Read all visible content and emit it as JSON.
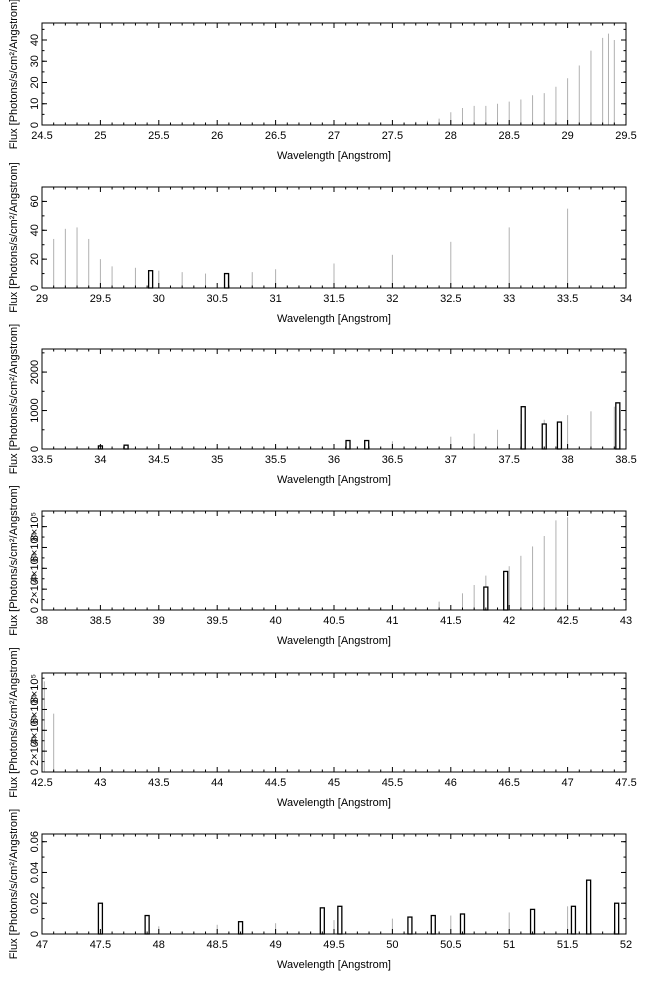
{
  "chart_data": [
    {
      "type": "bar",
      "title": "",
      "xlabel": "Wavelength [Angstrom]",
      "ylabel": "Flux [Photons/s/cm²/Angstrom]",
      "xlim": [
        24.5,
        29.5
      ],
      "ylim": [
        0,
        48
      ],
      "xticks": [
        24.5,
        25,
        25.5,
        26,
        26.5,
        27,
        27.5,
        28,
        28.5,
        29,
        29.5
      ],
      "xtick_labels": [
        "24.5",
        "25",
        "25.5",
        "26",
        "26.5",
        "27",
        "27.5",
        "28",
        "28.5",
        "29",
        "29.5"
      ],
      "yticks": [
        0,
        10,
        20,
        30,
        40
      ],
      "ytick_labels": [
        "0",
        "10",
        "20",
        "30",
        "40"
      ],
      "grid": false,
      "series": [
        {
          "style": "errorbars",
          "x": [
            27.6,
            27.7,
            27.8,
            27.9,
            28.0,
            28.1,
            28.2,
            28.3,
            28.4,
            28.5,
            28.6,
            28.7,
            28.8,
            28.9,
            29.0,
            29.1,
            29.2,
            29.3,
            29.35,
            29.4,
            29.5
          ],
          "values": [
            1,
            1.5,
            2,
            3,
            6,
            8,
            9,
            9,
            10,
            11,
            12,
            14,
            15,
            18,
            22,
            28,
            35,
            41,
            43,
            40,
            36
          ]
        }
      ]
    },
    {
      "type": "bar",
      "title": "",
      "xlabel": "Wavelength [Angstrom]",
      "ylabel": "Flux [Photons/s/cm²/Angstrom]",
      "xlim": [
        29,
        34
      ],
      "ylim": [
        0,
        70
      ],
      "xticks": [
        29,
        29.5,
        30,
        30.5,
        31,
        31.5,
        32,
        32.5,
        33,
        33.5,
        34
      ],
      "xtick_labels": [
        "29",
        "29.5",
        "30",
        "30.5",
        "31",
        "31.5",
        "32",
        "32.5",
        "33",
        "33.5",
        "34"
      ],
      "yticks": [
        0,
        20,
        40,
        60
      ],
      "ytick_labels": [
        "0",
        "20",
        "40",
        "60"
      ],
      "grid": false,
      "series": [
        {
          "style": "errorbars",
          "x": [
            29.0,
            29.1,
            29.2,
            29.3,
            29.4,
            29.5,
            29.6,
            29.8,
            30.0,
            30.2,
            30.4,
            30.6,
            30.8,
            31.0,
            31.5,
            32.0,
            32.5,
            33.0,
            33.5,
            34.0
          ],
          "values": [
            24,
            34,
            41,
            42,
            34,
            20,
            15,
            14,
            12,
            11,
            10,
            10,
            11,
            13,
            17,
            23,
            32,
            42,
            55,
            64
          ]
        },
        {
          "style": "lines",
          "x": [
            29.93,
            30.58
          ],
          "values": [
            12,
            10
          ]
        }
      ]
    },
    {
      "type": "bar",
      "title": "",
      "xlabel": "Wavelength [Angstrom]",
      "ylabel": "Flux [Photons/s/cm²/Angstrom]",
      "xlim": [
        33.5,
        38.5
      ],
      "ylim": [
        0,
        2600
      ],
      "xticks": [
        33.5,
        34,
        34.5,
        35,
        35.5,
        36,
        36.5,
        37,
        37.5,
        38,
        38.5
      ],
      "xtick_labels": [
        "33.5",
        "34",
        "34.5",
        "35",
        "35.5",
        "36",
        "36.5",
        "37",
        "37.5",
        "38",
        "38.5"
      ],
      "yticks": [
        0,
        1000,
        2000
      ],
      "ytick_labels": [
        "0",
        "1000",
        "2000"
      ],
      "grid": false,
      "series": [
        {
          "style": "errorbars",
          "x": [
            34.0,
            34.5,
            35.0,
            35.5,
            36.0,
            36.5,
            37.0,
            37.2,
            37.4,
            37.6,
            37.8,
            38.0,
            38.2,
            38.4,
            38.5
          ],
          "values": [
            20,
            30,
            50,
            70,
            120,
            200,
            320,
            400,
            500,
            650,
            760,
            880,
            980,
            1100,
            1200
          ]
        },
        {
          "style": "lines",
          "x": [
            34.0,
            34.22,
            36.12,
            36.28,
            37.62,
            37.8,
            37.93,
            38.43
          ],
          "values": [
            80,
            100,
            220,
            220,
            1100,
            650,
            700,
            1200
          ]
        }
      ]
    },
    {
      "type": "bar",
      "title": "",
      "xlabel": "Wavelength [Angstrom]",
      "ylabel": "Flux [Photons/s/cm²/Angstrom]",
      "xlim": [
        38,
        43
      ],
      "ylim": [
        0,
        950000
      ],
      "xticks": [
        38,
        38.5,
        39,
        39.5,
        40,
        40.5,
        41,
        41.5,
        42,
        42.5,
        43
      ],
      "xtick_labels": [
        "38",
        "38.5",
        "39",
        "39.5",
        "40",
        "40.5",
        "41",
        "41.5",
        "42",
        "42.5",
        "43"
      ],
      "yticks": [
        0,
        200000,
        400000,
        600000,
        800000
      ],
      "ytick_labels": [
        "0",
        "2×10⁵",
        "4×10⁵",
        "6×10⁵",
        "8×10⁵"
      ],
      "grid": false,
      "series": [
        {
          "style": "errorbars",
          "x": [
            40.5,
            41.0,
            41.4,
            41.6,
            41.7,
            41.8,
            42.0,
            42.1,
            42.2,
            42.3,
            42.4,
            42.5,
            42.6
          ],
          "values": [
            15000,
            40000,
            80000,
            160000,
            240000,
            330000,
            420000,
            520000,
            610000,
            710000,
            860000,
            890000,
            1000
          ]
        },
        {
          "style": "lines",
          "x": [
            41.8,
            41.97
          ],
          "values": [
            220000,
            370000
          ]
        }
      ]
    },
    {
      "type": "bar",
      "title": "",
      "xlabel": "Wavelength [Angstrom]",
      "ylabel": "Flux [Photons/s/cm²/Angstrom]",
      "xlim": [
        42.5,
        47.5
      ],
      "ylim": [
        0,
        950000
      ],
      "xticks": [
        42.5,
        43,
        43.5,
        44,
        44.5,
        45,
        45.5,
        46,
        46.5,
        47,
        47.5
      ],
      "xtick_labels": [
        "42.5",
        "43",
        "43.5",
        "44",
        "44.5",
        "45",
        "45.5",
        "46",
        "46.5",
        "47",
        "47.5"
      ],
      "yticks": [
        0,
        200000,
        400000,
        600000,
        800000
      ],
      "ytick_labels": [
        "0",
        "2×10⁵",
        "4×10⁵",
        "6×10⁵",
        "8×10⁵"
      ],
      "grid": false,
      "series": [
        {
          "style": "errorbars",
          "x": [
            42.52,
            42.6
          ],
          "values": [
            870000,
            560000
          ]
        }
      ]
    },
    {
      "type": "bar",
      "title": "",
      "xlabel": "Wavelength [Angstrom]",
      "ylabel": "Flux [Photons/s/cm²/Angstrom]",
      "xlim": [
        47,
        52
      ],
      "ylim": [
        0,
        0.065
      ],
      "xticks": [
        47,
        47.5,
        48,
        48.5,
        49,
        49.5,
        50,
        50.5,
        51,
        51.5,
        52
      ],
      "xtick_labels": [
        "47",
        "47.5",
        "48",
        "48.5",
        "49",
        "49.5",
        "50",
        "50.5",
        "51",
        "51.5",
        "52"
      ],
      "yticks": [
        0,
        0.02,
        0.04,
        0.06
      ],
      "ytick_labels": [
        "0",
        "0.02",
        "0.04",
        "0.06"
      ],
      "grid": false,
      "series": [
        {
          "style": "errorbars",
          "x": [
            47.0,
            47.5,
            48.0,
            48.5,
            49.0,
            49.5,
            50.0,
            50.5,
            51.0,
            51.5,
            52.0
          ],
          "values": [
            0.003,
            0.004,
            0.005,
            0.006,
            0.007,
            0.009,
            0.01,
            0.012,
            0.014,
            0.018,
            0.02
          ]
        },
        {
          "style": "lines",
          "x": [
            47.5,
            47.9,
            48.7,
            49.4,
            49.55,
            50.15,
            50.35,
            50.6,
            51.2,
            51.55,
            51.68,
            51.92
          ],
          "values": [
            0.02,
            0.012,
            0.008,
            0.017,
            0.018,
            0.011,
            0.012,
            0.013,
            0.016,
            0.018,
            0.035,
            0.02
          ]
        }
      ]
    }
  ]
}
